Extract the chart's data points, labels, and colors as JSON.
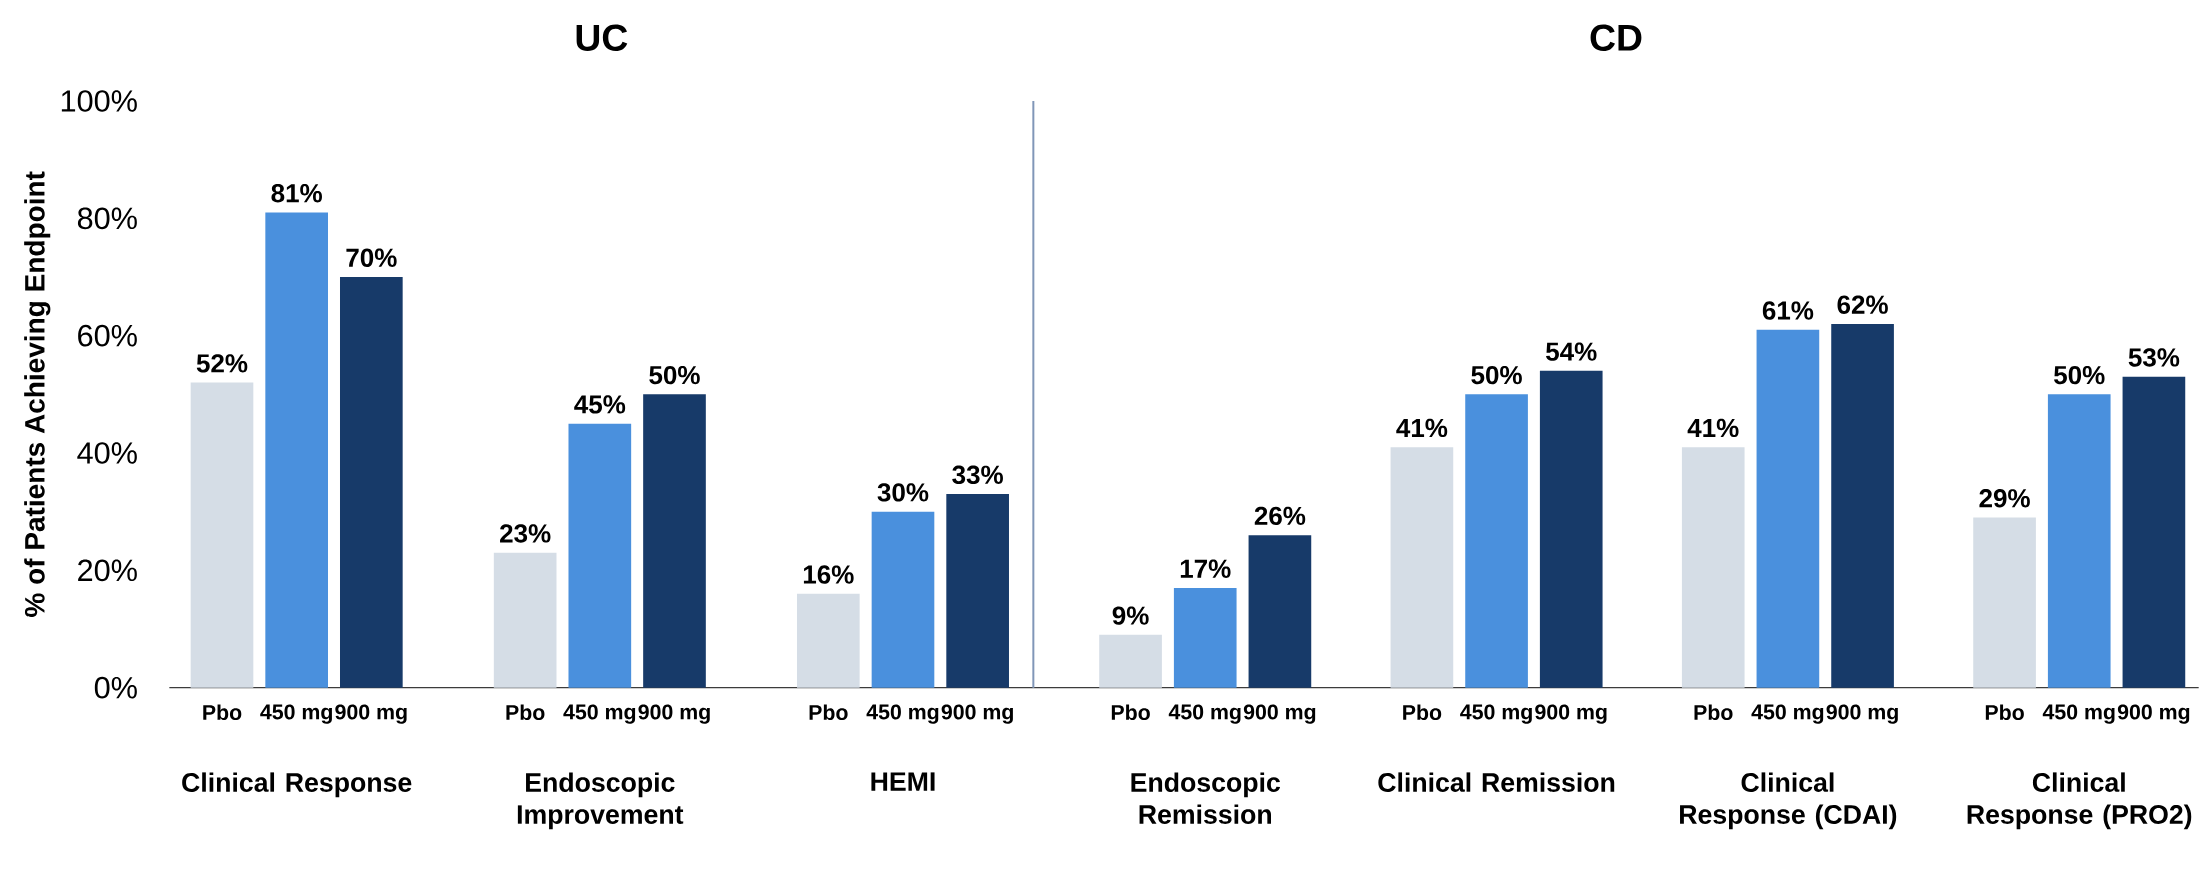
{
  "chart_data": [
    {
      "type": "bar",
      "title": "UC",
      "ylabel": "% of Patients Achieving Endpoint",
      "categories": [
        "Clinical Response",
        "Endoscopic Improvement",
        "HEMI"
      ],
      "series": [
        {
          "name": "Pbo",
          "color": "#d5dde6",
          "values": [
            52,
            23,
            16
          ],
          "value_labels": [
            "52%",
            "23%",
            "16%"
          ]
        },
        {
          "name": "450 mg",
          "color": "#4a90dd",
          "values": [
            81,
            45,
            30
          ],
          "value_labels": [
            "81%",
            "45%",
            "30%"
          ]
        },
        {
          "name": "900 mg",
          "color": "#173a69",
          "values": [
            70,
            50,
            33
          ],
          "value_labels": [
            "70%",
            "50%",
            "33%"
          ]
        }
      ],
      "ylim": [
        0,
        100
      ],
      "yticks": [
        {
          "value": 0,
          "label": "0%"
        },
        {
          "value": 20,
          "label": "20%"
        },
        {
          "value": 40,
          "label": "40%"
        },
        {
          "value": 60,
          "label": "60%"
        },
        {
          "value": 80,
          "label": "80%"
        },
        {
          "value": 100,
          "label": "100%"
        }
      ]
    },
    {
      "type": "bar",
      "title": "CD",
      "categories": [
        "Endoscopic Remission",
        "Clinical Remission",
        "Clinical Response (CDAI)",
        "Clinical Response (PRO2)"
      ],
      "series": [
        {
          "name": "Pbo",
          "color": "#d5dde6",
          "values": [
            9,
            41,
            41,
            29
          ],
          "value_labels": [
            "9%",
            "41%",
            "41%",
            "29%"
          ]
        },
        {
          "name": "450 mg",
          "color": "#4a90dd",
          "values": [
            17,
            50,
            61,
            50
          ],
          "value_labels": [
            "17%",
            "50%",
            "61%",
            "50%"
          ]
        },
        {
          "name": "900 mg",
          "color": "#173a69",
          "values": [
            26,
            54,
            62,
            53
          ],
          "value_labels": [
            "26%",
            "54%",
            "62%",
            "53%"
          ]
        }
      ],
      "ylim": [
        0,
        100
      ],
      "tick_labels": "x"
    }
  ]
}
